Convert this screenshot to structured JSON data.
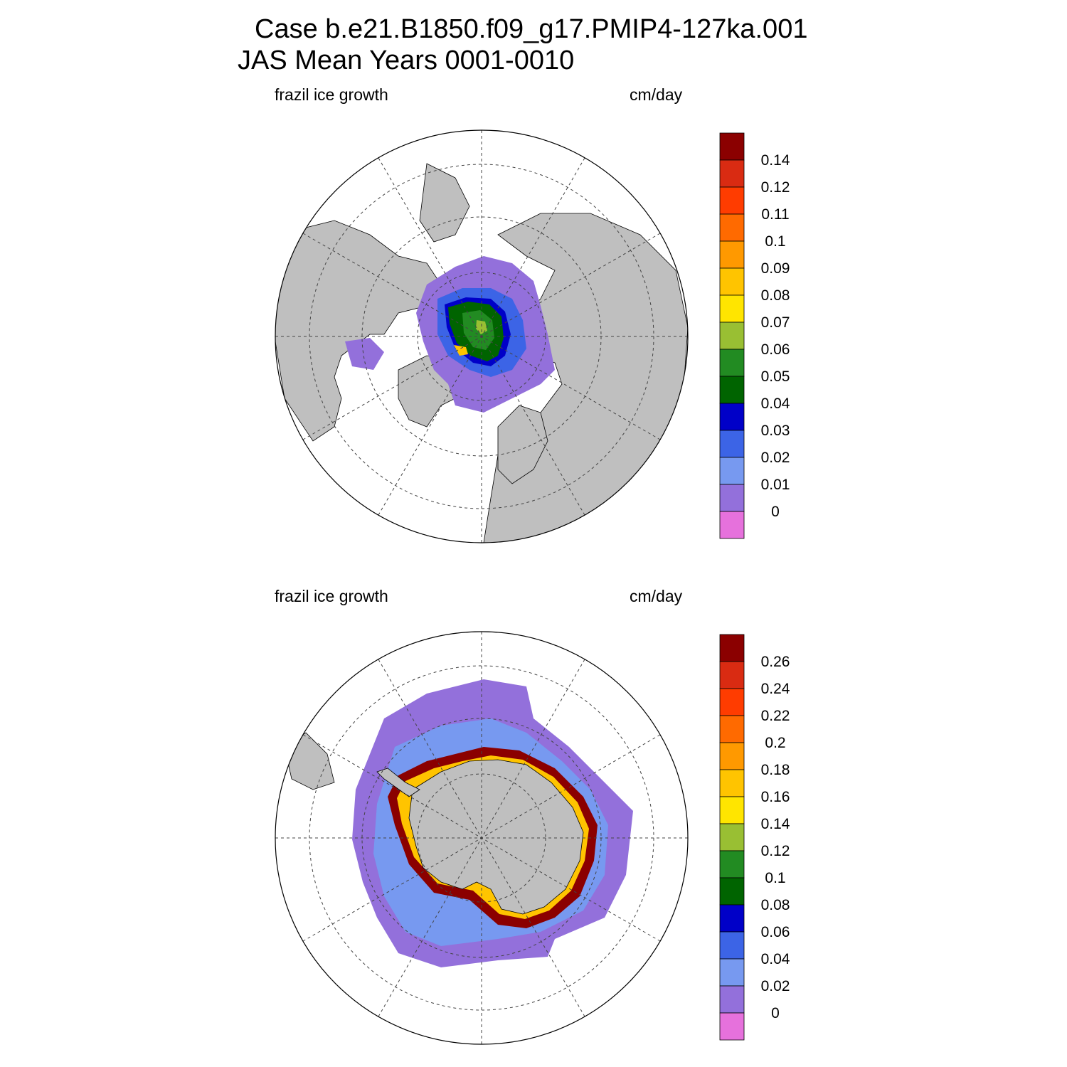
{
  "title_line1": "Case b.e21.B1850.f09_g17.PMIP4-127ka.001",
  "title_line2": "JAS Mean   Years 0001-0010",
  "panels": [
    {
      "left_label": "frazil ice growth",
      "right_label": "cm/day",
      "colorbar": {
        "ticks": [
          "0.14",
          "0.12",
          "0.11",
          "0.1",
          "0.09",
          "0.08",
          "0.07",
          "0.06",
          "0.05",
          "0.04",
          "0.03",
          "0.02",
          "0.01",
          "0"
        ],
        "colors": [
          "#8b0000",
          "#d92b12",
          "#ff3c00",
          "#ff6a00",
          "#ff9900",
          "#ffc400",
          "#ffe500",
          "#99bf33",
          "#228b22",
          "#006400",
          "#0000c8",
          "#3c64e6",
          "#7799f0",
          "#9370db",
          "#e671dc"
        ]
      }
    },
    {
      "left_label": "frazil ice growth",
      "right_label": "cm/day",
      "colorbar": {
        "ticks": [
          "0.26",
          "0.24",
          "0.22",
          "0.2",
          "0.18",
          "0.16",
          "0.14",
          "0.12",
          "0.1",
          "0.08",
          "0.06",
          "0.04",
          "0.02",
          "0"
        ],
        "colors": [
          "#8b0000",
          "#d92b12",
          "#ff3c00",
          "#ff6a00",
          "#ff9900",
          "#ffc400",
          "#ffe500",
          "#99bf33",
          "#228b22",
          "#006400",
          "#0000c8",
          "#3c64e6",
          "#7799f0",
          "#9370db",
          "#e671dc"
        ]
      }
    }
  ]
}
